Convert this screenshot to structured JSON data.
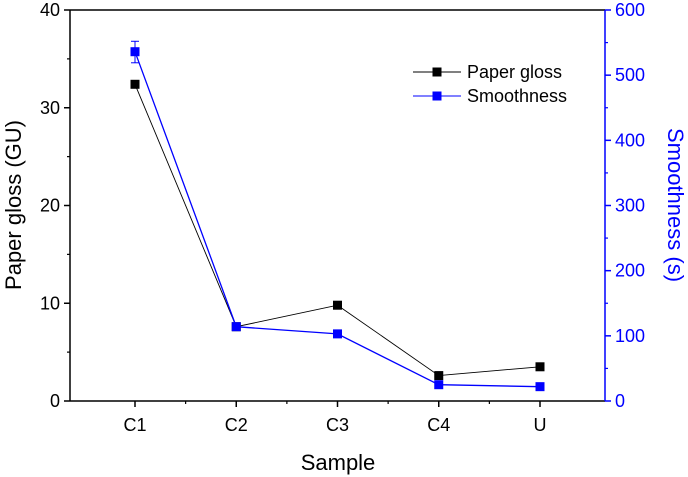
{
  "chart_data": {
    "type": "line",
    "categories": [
      "C1",
      "C2",
      "C3",
      "C4",
      "U"
    ],
    "xlabel": "Sample",
    "series": [
      {
        "name": "Paper gloss",
        "axis": "left",
        "color": "#000000",
        "values": [
          32.4,
          7.6,
          9.8,
          2.6,
          3.5
        ]
      },
      {
        "name": "Smoothness",
        "axis": "right",
        "color": "#0000ff",
        "values": [
          536,
          114,
          103,
          25,
          22
        ],
        "error": [
          null,
          null,
          null,
          null,
          null
        ],
        "error_c1": [
          519,
          552
        ]
      }
    ],
    "y_left": {
      "label": "Paper gloss (GU)",
      "lim": [
        0,
        40
      ],
      "ticks": [
        0,
        10,
        20,
        30,
        40
      ],
      "color": "#000000"
    },
    "y_right": {
      "label": "Smoothness (s)",
      "lim": [
        0,
        600
      ],
      "ticks": [
        0,
        100,
        200,
        300,
        400,
        500,
        600
      ],
      "color": "#0000ff"
    },
    "grid": false,
    "legend_position": "top-right"
  }
}
